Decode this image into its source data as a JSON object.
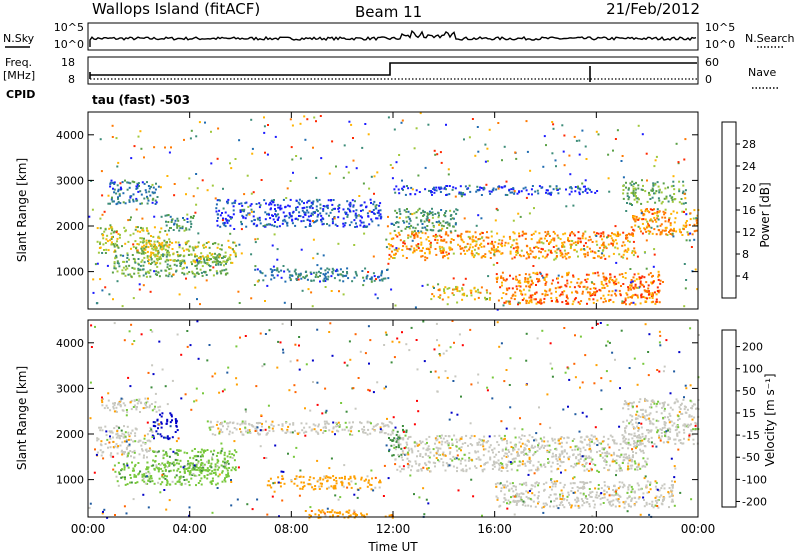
{
  "header": {
    "station": "Wallops Island (fitACF)",
    "beam": "Beam 11",
    "date": "21/Feb/2012"
  },
  "noise_panel": {
    "left_label": "N.Sky",
    "left_ticks": [
      "10^5",
      "10^0"
    ],
    "right_label": "N.Search",
    "right_ticks": [
      "10^5",
      "10^0"
    ]
  },
  "freq_panel": {
    "left_label": "Freq.",
    "left_unit": "[MHz]",
    "left_ticks": [
      "18",
      "8"
    ],
    "right_label": "Nave",
    "right_ticks": [
      "60",
      "0"
    ],
    "cpid_label": "CPID",
    "cpid_value": "tau (fast) -503"
  },
  "colors": {
    "power_scale": [
      "#1a1aff",
      "#1f6bb0",
      "#3c8c78",
      "#5aa046",
      "#a0c83c",
      "#ffb400",
      "#ff7800",
      "#ff2800"
    ],
    "velocity_scale": [
      "#0000c8",
      "#1f5aa0",
      "#3c8c3c",
      "#78c83c",
      "#c8c8c0",
      "#ffa000",
      "#ff6400",
      "#ff0000"
    ]
  },
  "chart_data": [
    {
      "type": "heatmap",
      "name": "power",
      "ylabel": "Slant Range [km]",
      "ylim": [
        180,
        4500
      ],
      "xlim_hours": [
        0,
        24
      ],
      "yticks": [
        "1000",
        "2000",
        "3000",
        "4000"
      ],
      "colorbar_label": "Power [dB]",
      "colorbar_ticks": [
        "4",
        "8",
        "12",
        "16",
        "20",
        "24",
        "28"
      ],
      "colorbar_range": [
        0,
        32
      ],
      "regions": [
        {
          "t0": 0.3,
          "t1": 3.2,
          "r0": 1400,
          "r1": 2000,
          "level": 18
        },
        {
          "t0": 1.0,
          "t1": 5.5,
          "r0": 900,
          "r1": 1400,
          "level": 14
        },
        {
          "t0": 2.0,
          "t1": 5.8,
          "r0": 1200,
          "r1": 1700,
          "level": 18
        },
        {
          "t0": 0.8,
          "t1": 2.8,
          "r0": 2500,
          "r1": 3000,
          "level": 8
        },
        {
          "t0": 3.0,
          "t1": 4.2,
          "r0": 1900,
          "r1": 2300,
          "level": 12
        },
        {
          "t0": 5.0,
          "t1": 11.5,
          "r0": 2000,
          "r1": 2600,
          "level": 4
        },
        {
          "t0": 6.5,
          "t1": 11.8,
          "r0": 800,
          "r1": 1100,
          "level": 8
        },
        {
          "t0": 11.8,
          "t1": 21.5,
          "r0": 1300,
          "r1": 1900,
          "level": 24
        },
        {
          "t0": 13.5,
          "t1": 15.8,
          "r0": 400,
          "r1": 700,
          "level": 22
        },
        {
          "t0": 16.0,
          "t1": 22.5,
          "r0": 300,
          "r1": 1000,
          "level": 26
        },
        {
          "t0": 21.3,
          "t1": 24.0,
          "r0": 1800,
          "r1": 2400,
          "level": 24
        },
        {
          "t0": 12.0,
          "t1": 20.0,
          "r0": 2700,
          "r1": 2900,
          "level": 4
        },
        {
          "t0": 21.0,
          "t1": 23.5,
          "r0": 2500,
          "r1": 3000,
          "level": 14
        },
        {
          "t0": 12.0,
          "t1": 14.5,
          "r0": 1900,
          "r1": 2400,
          "level": 12
        }
      ]
    },
    {
      "type": "heatmap",
      "name": "velocity",
      "ylabel": "Slant Range [km]",
      "ylim": [
        180,
        4500
      ],
      "xlim_hours": [
        0,
        24
      ],
      "xticks": [
        "00:00",
        "04:00",
        "08:00",
        "12:00",
        "16:00",
        "20:00",
        "00:00"
      ],
      "xlabel": "Time UT",
      "yticks": [
        "1000",
        "2000",
        "3000",
        "4000"
      ],
      "colorbar_label": "Velocity [m s⁻¹]",
      "colorbar_ticks": [
        "200",
        "100",
        "50",
        "15",
        "-15",
        "-50",
        "-100",
        "-200"
      ],
      "regions": [
        {
          "t0": 2.5,
          "t1": 3.5,
          "r0": 1900,
          "r1": 2500,
          "level": 0
        },
        {
          "t0": 1.0,
          "t1": 5.5,
          "r0": 900,
          "r1": 1400,
          "level": 3
        },
        {
          "t0": 2.5,
          "t1": 5.8,
          "r0": 1200,
          "r1": 1700,
          "level": 3
        },
        {
          "t0": 0.3,
          "t1": 2.5,
          "r0": 1500,
          "r1": 2200,
          "level": 4
        },
        {
          "t0": 0.5,
          "t1": 2.8,
          "r0": 2500,
          "r1": 2800,
          "level": 4
        },
        {
          "t0": 7.0,
          "t1": 11.5,
          "r0": 800,
          "r1": 1100,
          "level": 5
        },
        {
          "t0": 8.5,
          "t1": 12.0,
          "r0": 180,
          "r1": 350,
          "level": 5
        },
        {
          "t0": 11.8,
          "t1": 12.5,
          "r0": 1500,
          "r1": 2200,
          "level": 2
        },
        {
          "t0": 12.0,
          "t1": 22.0,
          "r0": 1200,
          "r1": 2000,
          "level": 4
        },
        {
          "t0": 16.0,
          "t1": 23.0,
          "r0": 400,
          "r1": 1000,
          "level": 4
        },
        {
          "t0": 21.0,
          "t1": 24.0,
          "r0": 1800,
          "r1": 2800,
          "level": 4
        },
        {
          "t0": 4.5,
          "t1": 12.0,
          "r0": 2000,
          "r1": 2300,
          "level": 4
        }
      ]
    }
  ]
}
